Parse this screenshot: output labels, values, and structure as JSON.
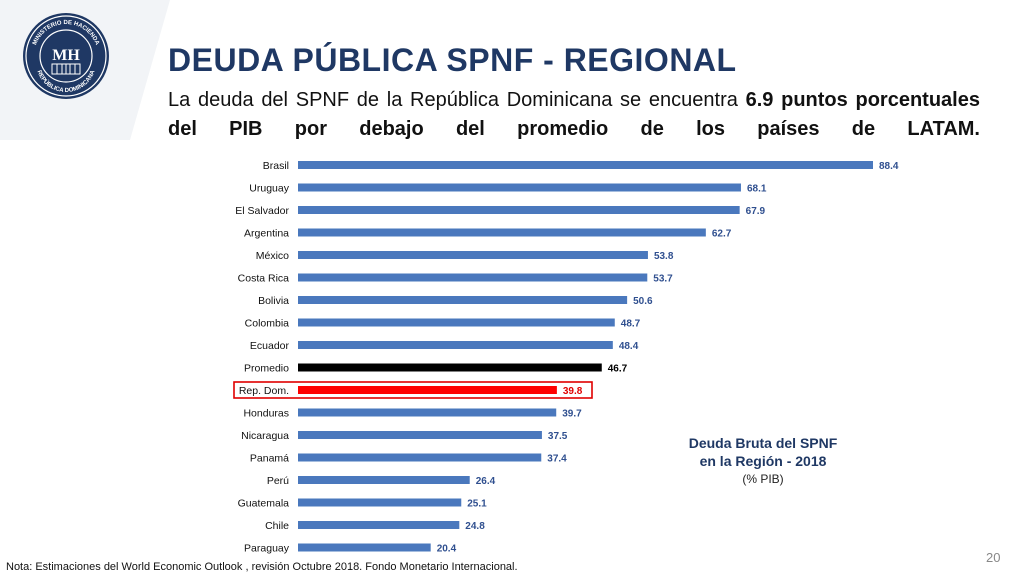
{
  "header": {
    "title": "DEUDA PÚBLICA SPNF - REGIONAL",
    "subtitle_pre": "La deuda del SPNF de la República Dominicana se encuentra ",
    "subtitle_bold": "6.9 puntos porcentuales del PIB por debajo del promedio de los países de LATAM."
  },
  "logo": {
    "monogram": "MH",
    "ring_text_top": "MINISTERIO DE HACIENDA",
    "ring_text_bottom": "REPÚBLICA DOMINICANA"
  },
  "chart_data": {
    "type": "bar",
    "orientation": "horizontal",
    "title": "Deuda Bruta del SPNF en la Región - 2018",
    "subtitle": "(% PIB)",
    "categories": [
      "Brasil",
      "Uruguay",
      "El Salvador",
      "Argentina",
      "México",
      "Costa Rica",
      "Bolivia",
      "Colombia",
      "Ecuador",
      "Promedio",
      "Rep. Dom.",
      "Honduras",
      "Nicaragua",
      "Panamá",
      "Perú",
      "Guatemala",
      "Chile",
      "Paraguay"
    ],
    "values": [
      88.4,
      68.1,
      67.9,
      62.7,
      53.8,
      53.7,
      50.6,
      48.7,
      48.4,
      46.7,
      39.8,
      39.7,
      37.5,
      37.4,
      26.4,
      25.1,
      24.8,
      20.4
    ],
    "value_labels": [
      "88.4",
      "68.1",
      "67.9",
      "62.7",
      "53.8",
      "53.7",
      "50.6",
      "48.7",
      "48.4",
      "46.7",
      "39.8",
      "39.7",
      "37.5",
      "37.4",
      "26.4",
      "25.1",
      "24.8",
      "20.4"
    ],
    "highlight": {
      "Promedio": "#000000",
      "Rep. Dom.": "#ff0000"
    },
    "default_color": "#4a78bd",
    "xlim": [
      0,
      88.4
    ],
    "grid": false,
    "legend": "none"
  },
  "caption": {
    "line1": "Deuda Bruta del SPNF",
    "line2": "en la Región - 2018",
    "line3": "(% PIB)"
  },
  "footer": {
    "note": "Nota: Estimaciones del World Economic Outlook , revisión Octubre 2018. Fondo Monetario Internacional.",
    "page_number": "20"
  }
}
